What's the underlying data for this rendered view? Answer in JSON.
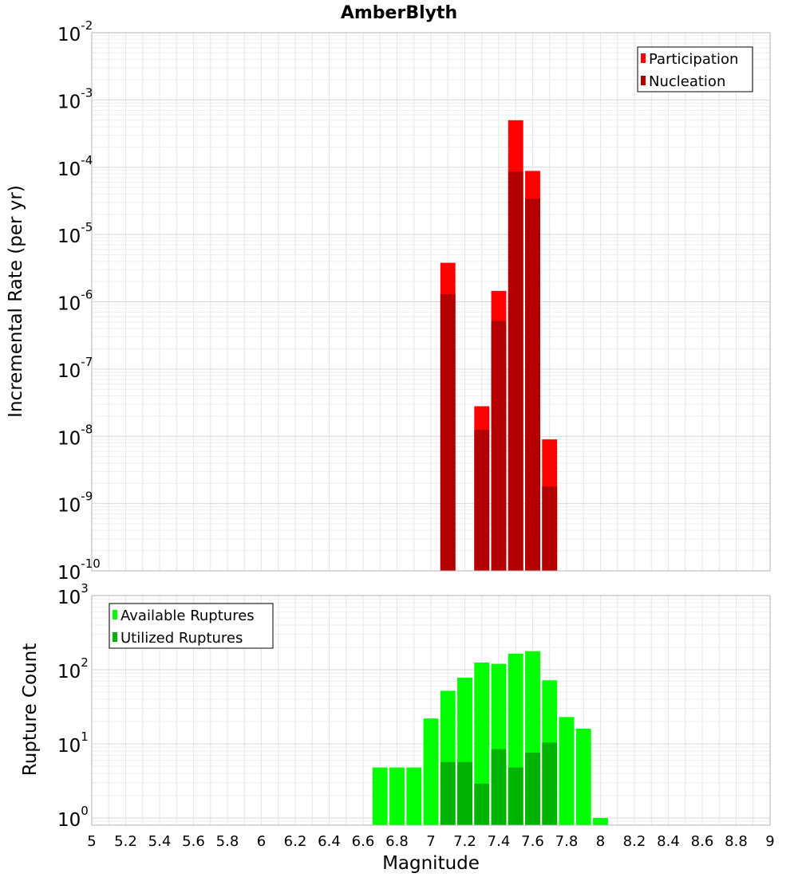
{
  "title": "AmberBlyth",
  "chart_data": [
    {
      "type": "bar",
      "ylabel": "Incremental Rate (per yr)",
      "yscale": "log",
      "ylim": [
        1e-10,
        0.01
      ],
      "xlim": [
        5,
        9
      ],
      "grid": true,
      "legend_position": "top-right",
      "y_ticks": [
        {
          "base": "10",
          "exp": "-10"
        },
        {
          "base": "10",
          "exp": "-9"
        },
        {
          "base": "10",
          "exp": "-8"
        },
        {
          "base": "10",
          "exp": "-7"
        },
        {
          "base": "10",
          "exp": "-6"
        },
        {
          "base": "10",
          "exp": "-5"
        },
        {
          "base": "10",
          "exp": "-4"
        },
        {
          "base": "10",
          "exp": "-3"
        },
        {
          "base": "10",
          "exp": "-2"
        }
      ],
      "x": [
        7.1,
        7.3,
        7.4,
        7.5,
        7.6,
        7.7
      ],
      "series": [
        {
          "name": "Participation",
          "color": "#ff0000",
          "values": [
            3.8e-06,
            2.8e-08,
            1.45e-06,
            0.0005,
            8.8e-05,
            9e-09
          ]
        },
        {
          "name": "Nucleation",
          "color": "#b30000",
          "values": [
            1.3e-06,
            1.25e-08,
            5.2e-07,
            8.6e-05,
            3.4e-05,
            1.8e-09
          ]
        }
      ]
    },
    {
      "type": "bar",
      "ylabel": "Rupture Count",
      "xlabel": "Magnitude",
      "yscale": "log",
      "ylim": [
        0.8,
        1000
      ],
      "xlim": [
        5,
        9
      ],
      "grid": true,
      "legend_position": "top-left",
      "y_ticks": [
        {
          "base": "10",
          "exp": "0"
        },
        {
          "base": "10",
          "exp": "1"
        },
        {
          "base": "10",
          "exp": "2"
        },
        {
          "base": "10",
          "exp": "3"
        }
      ],
      "x_ticks": [
        "5",
        "5.2",
        "5.4",
        "5.6",
        "5.8",
        "6",
        "6.2",
        "6.4",
        "6.6",
        "6.8",
        "7",
        "7.2",
        "7.4",
        "7.6",
        "7.8",
        "8",
        "8.2",
        "8.4",
        "8.6",
        "8.8",
        "9"
      ],
      "series": [
        {
          "name": "Available Ruptures",
          "color": "#00ff00",
          "x": [
            6.7,
            6.8,
            6.9,
            7.0,
            7.1,
            7.2,
            7.3,
            7.4,
            7.5,
            7.6,
            7.7,
            7.8,
            7.9,
            8.0
          ],
          "values": [
            4.8,
            4.8,
            4.8,
            22,
            52,
            78,
            125,
            120,
            165,
            178,
            72,
            23,
            16,
            1
          ]
        },
        {
          "name": "Utilized Ruptures",
          "color": "#00b300",
          "x": [
            7.1,
            7.2,
            7.3,
            7.4,
            7.5,
            7.6,
            7.7
          ],
          "values": [
            5.7,
            5.7,
            2.9,
            8.5,
            4.8,
            7.6,
            10.4
          ]
        }
      ]
    }
  ]
}
